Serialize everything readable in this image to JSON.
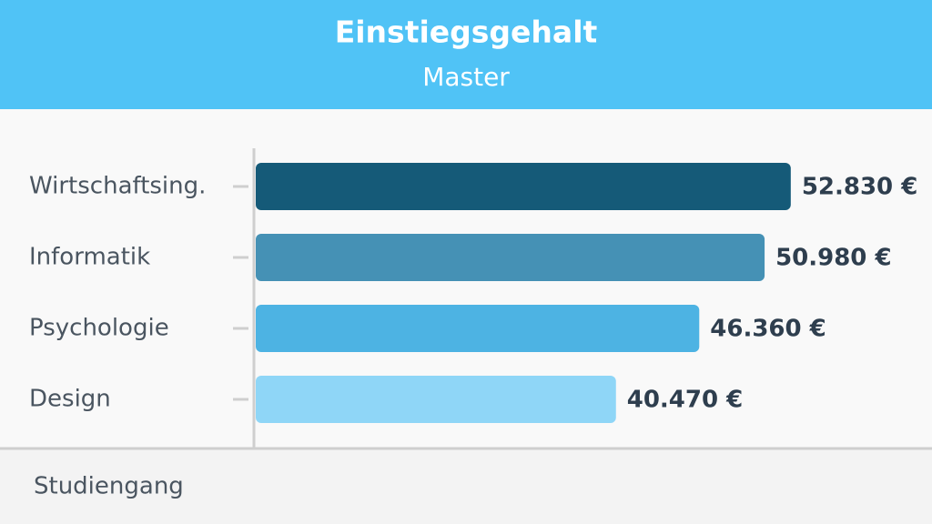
{
  "chart_data": {
    "type": "bar",
    "orientation": "horizontal",
    "title": "Einstiegsgehalt",
    "subtitle": "Master",
    "ylabel": "Studiengang",
    "categories": [
      "Wirtschaftsing.",
      "Informatik",
      "Psychologie",
      "Design"
    ],
    "values": [
      52830,
      50980,
      46360,
      40470
    ],
    "value_labels": [
      "52.830 €",
      "50.980 €",
      "46.360 €",
      "40.470 €"
    ],
    "colors": [
      "#155a78",
      "#4591b5",
      "#4db3e3",
      "#8fd6f7"
    ],
    "xlim": [
      15000,
      54000
    ]
  }
}
